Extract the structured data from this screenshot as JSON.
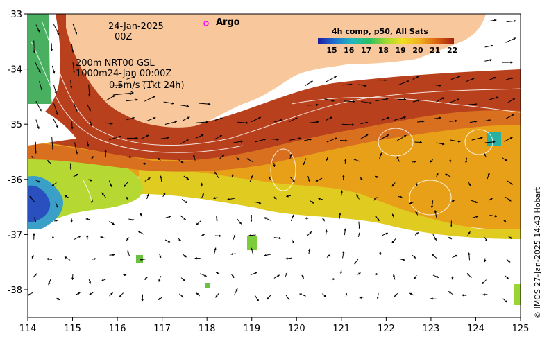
{
  "map_info": {
    "date_line1": "24-Jan-2025",
    "date_line2": "00Z",
    "contour_line1": "200m  NRT00 GSL",
    "contour_line2": "1000m24-Jan 00:00Z",
    "scale_label": "0.5m/s (1kt 24h)",
    "argo_label": "Argo",
    "credit": "© IMOS 27-Jan-2025 14:43 Hobart"
  },
  "colorbar": {
    "title": "4h comp, p50, All Sats",
    "ticks": [
      "15",
      "16",
      "17",
      "18",
      "19",
      "20",
      "21",
      "22"
    ]
  },
  "axes": {
    "x_ticks": [
      "114",
      "115",
      "116",
      "117",
      "118",
      "119",
      "120",
      "121",
      "122",
      "123",
      "124",
      "125"
    ],
    "y_ticks": [
      "-33",
      "-34",
      "-35",
      "-36",
      "-37",
      "-38"
    ]
  },
  "colors": {
    "land": "#f8c89c",
    "argo_marker": "#ff00ff",
    "sst_warm": "#a93416",
    "sst_mid": "#e29a14",
    "sst_cool": "#9ad534",
    "sst_cold": "#2a61c8"
  }
}
